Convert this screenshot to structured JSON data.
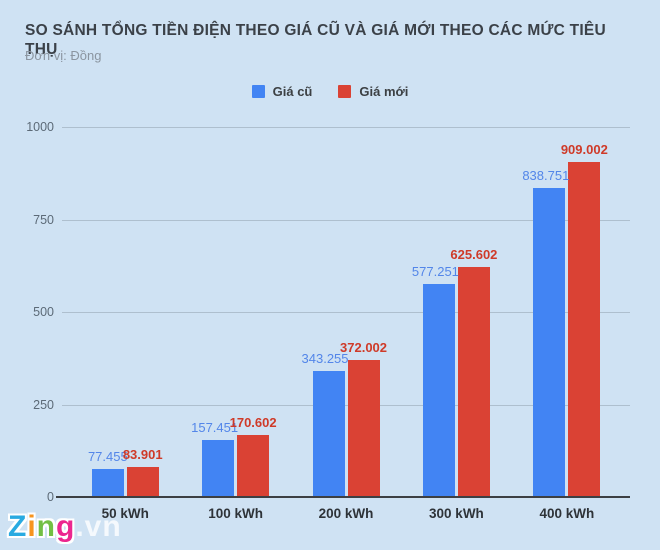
{
  "header": {
    "title": "SO SÁNH TỔNG TIỀN ĐIỆN THEO GIÁ CŨ VÀ GIÁ MỚI THEO CÁC MỨC TIÊU THỤ",
    "subtitle": "Đơn vị: Đồng"
  },
  "colors": {
    "background": "#cfe2f3",
    "gridline": "#aebfce",
    "axis_baseline": "#3c3f43",
    "old_price_blue": "#4284f3",
    "new_price_red": "#da4234"
  },
  "chart_data": {
    "type": "bar",
    "title": "SO SÁNH TỔNG TIỀN ĐIỆN THEO GIÁ CŨ VÀ GIÁ MỚI THEO CÁC MỨC TIÊU THỤ",
    "unit_note": "Đơn vị: Đồng",
    "categories": [
      "50 kWh",
      "100 kWh",
      "200 kWh",
      "300 kWh",
      "400 kWh"
    ],
    "series": [
      {
        "name": "Giá cũ",
        "color": "#4284f3",
        "label_color": "#5386e9",
        "values": [
          77.455,
          157.451,
          343.255,
          577.251,
          838.751
        ],
        "value_labels": [
          "77.455",
          "157.451",
          "343.255",
          "577.251",
          "838.751"
        ]
      },
      {
        "name": "Giá mới",
        "color": "#da4234",
        "label_color": "#cf3a28",
        "values": [
          83.901,
          170.602,
          372.002,
          625.602,
          909.002
        ],
        "value_labels": [
          "83.901",
          "170.602",
          "372.002",
          "625.602",
          "909.002"
        ]
      }
    ],
    "ylim": [
      0,
      1000
    ],
    "yticks": [
      0,
      250,
      500,
      750,
      1000
    ],
    "grid": true,
    "legend_position": "top"
  },
  "watermark": {
    "letters": [
      {
        "char": "Z",
        "color": "#29aae1"
      },
      {
        "char": "i",
        "color": "#f7941e"
      },
      {
        "char": "n",
        "color": "#72bf44"
      },
      {
        "char": "g",
        "color": "#ec268f"
      }
    ],
    "suffix": ".vn"
  }
}
